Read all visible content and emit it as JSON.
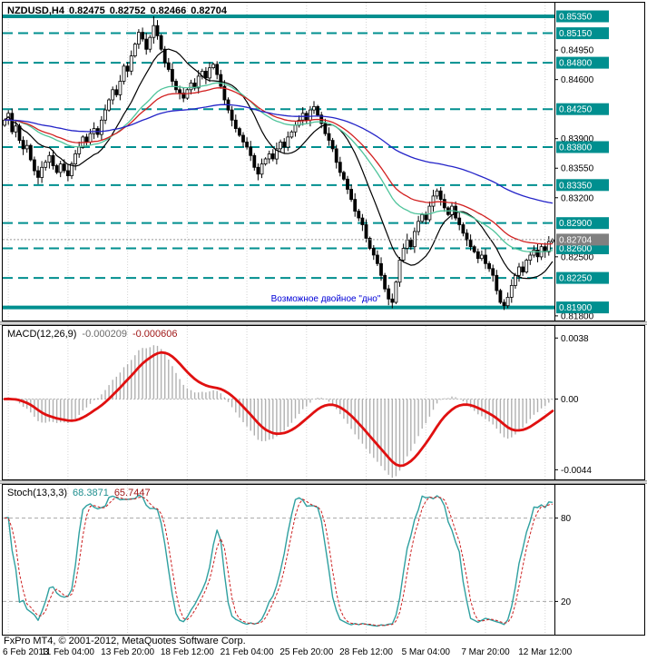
{
  "header": {
    "symbol": "NZDUSD,H4",
    "open": "0.82475",
    "high": "0.82752",
    "low": "0.82466",
    "close": "0.82704"
  },
  "macd_panel": {
    "label": "MACD(12,26,9)",
    "value_main": "-0.000209",
    "value_signal": "-0.000606"
  },
  "stoch_panel": {
    "label": "Stoch(13,3,3)",
    "value_main": "68.3871",
    "value_signal": "65.7447"
  },
  "footer": {
    "copyright": "FxPro MT4, © 2001-2012, MetaQuotes Software Corp."
  },
  "colors": {
    "level": "#008f8f",
    "grid": "#d4d4d4",
    "candle_up_fill": "#ffffff",
    "candle_down_fill": "#000000",
    "candle_border": "#000000",
    "macd_histogram": "#b0b0b0",
    "macd_signal": "#e01010",
    "stoch_main": "#2fa0a0",
    "stoch_signal": "#cc2020",
    "current_tag": "#808080",
    "tag_text": "#ffffff",
    "annotation": "#0000d8",
    "axis_text": "#000000"
  },
  "chart_data": {
    "type": "candlestick",
    "symbol": "NZDUSD",
    "timeframe": "H4",
    "current_bar": {
      "open": 0.82475,
      "high": 0.82752,
      "low": 0.82466,
      "close": 0.82704
    },
    "price_axis": {
      "min": 0.81745,
      "max": 0.85511,
      "current": 0.82704,
      "current_label": "0.82704",
      "plain_ticks": [
        {
          "value": 0.8495,
          "label": "0.84950"
        },
        {
          "value": 0.846,
          "label": "0.84600"
        },
        {
          "value": 0.839,
          "label": "0.83900"
        },
        {
          "value": 0.8355,
          "label": "0.83550"
        },
        {
          "value": 0.832,
          "label": "0.83200"
        },
        {
          "value": 0.825,
          "label": "0.82500"
        },
        {
          "value": 0.818,
          "label": "0.81800"
        }
      ]
    },
    "levels": [
      {
        "price": 0.8535,
        "label": "0.85350",
        "style": "solid"
      },
      {
        "price": 0.8515,
        "label": "0.85150",
        "style": "dashed"
      },
      {
        "price": 0.848,
        "label": "0.84800",
        "style": "dashed"
      },
      {
        "price": 0.8425,
        "label": "0.84250",
        "style": "dashed"
      },
      {
        "price": 0.838,
        "label": "0.83800",
        "style": "dashed"
      },
      {
        "price": 0.8335,
        "label": "0.83350",
        "style": "dashed"
      },
      {
        "price": 0.829,
        "label": "0.82900",
        "style": "dashed"
      },
      {
        "price": 0.826,
        "label": "0.82600",
        "style": "dashed"
      },
      {
        "price": 0.8225,
        "label": "0.82250",
        "style": "dashed"
      },
      {
        "price": 0.819,
        "label": "0.81900",
        "style": "solid"
      }
    ],
    "annotation": {
      "text": "Возможное двойное \"дно\"",
      "price": 0.8197,
      "x_frac": 0.585,
      "color": "#0000d8"
    },
    "time_axis": [
      {
        "index": 1,
        "label": "6 Feb 2013"
      },
      {
        "index": 17,
        "label": "11 Feb 04:00"
      },
      {
        "index": 33,
        "label": "13 Feb 20:00"
      },
      {
        "index": 49,
        "label": "18 Feb 12:00"
      },
      {
        "index": 65,
        "label": "21 Feb 04:00"
      },
      {
        "index": 81,
        "label": "25 Feb 20:00"
      },
      {
        "index": 97,
        "label": "28 Feb 12:00"
      },
      {
        "index": 113,
        "label": "5 Mar 04:00"
      },
      {
        "index": 129,
        "label": "7 Mar 20:00"
      },
      {
        "index": 145,
        "label": "12 Mar 12:00"
      }
    ],
    "first_open": 0.8406,
    "closes": [
      0.8412,
      0.842,
      0.8398,
      0.8405,
      0.8388,
      0.8378,
      0.8382,
      0.8365,
      0.8352,
      0.8344,
      0.8356,
      0.8362,
      0.837,
      0.8358,
      0.835,
      0.836,
      0.8352,
      0.8346,
      0.836,
      0.8372,
      0.838,
      0.8392,
      0.8386,
      0.8396,
      0.8402,
      0.8395,
      0.8412,
      0.8424,
      0.8436,
      0.8448,
      0.8442,
      0.8458,
      0.8476,
      0.847,
      0.8488,
      0.8502,
      0.8516,
      0.8508,
      0.8496,
      0.851,
      0.8524,
      0.8512,
      0.8496,
      0.848,
      0.8472,
      0.8458,
      0.8448,
      0.8444,
      0.8438,
      0.8448,
      0.8456,
      0.845,
      0.8464,
      0.847,
      0.8462,
      0.8474,
      0.8478,
      0.8466,
      0.8452,
      0.8436,
      0.8424,
      0.8412,
      0.8402,
      0.8394,
      0.8386,
      0.838,
      0.837,
      0.8356,
      0.8348,
      0.836,
      0.8366,
      0.8372,
      0.8366,
      0.8378,
      0.8386,
      0.838,
      0.8392,
      0.8398,
      0.8406,
      0.8412,
      0.842,
      0.8412,
      0.8424,
      0.8428,
      0.8418,
      0.8408,
      0.8396,
      0.8388,
      0.8378,
      0.8362,
      0.835,
      0.8342,
      0.833,
      0.8318,
      0.8304,
      0.8296,
      0.8288,
      0.8272,
      0.826,
      0.8252,
      0.8242,
      0.8228,
      0.8212,
      0.82,
      0.8196,
      0.822,
      0.8246,
      0.826,
      0.827,
      0.8262,
      0.828,
      0.8292,
      0.83,
      0.8294,
      0.831,
      0.8322,
      0.8328,
      0.8318,
      0.8308,
      0.83,
      0.831,
      0.8296,
      0.8288,
      0.8278,
      0.827,
      0.8262,
      0.8256,
      0.8248,
      0.8252,
      0.8242,
      0.8236,
      0.8228,
      0.821,
      0.8196,
      0.8192,
      0.8202,
      0.8216,
      0.8228,
      0.8238,
      0.8232,
      0.8246,
      0.8252,
      0.8258,
      0.825,
      0.8262,
      0.8256,
      0.8268,
      0.827
    ],
    "wick_overrides": {
      "9": {
        "low": 0.8336
      },
      "40": {
        "high": 0.8535
      },
      "104": {
        "low": 0.8189
      },
      "134": {
        "low": 0.8187
      }
    },
    "moving_averages": [
      {
        "name": "ma-black-13",
        "method": "sma",
        "period": 13,
        "color": "#000000",
        "width": 1.2
      },
      {
        "name": "ma-green-34",
        "method": "ema",
        "period": 34,
        "color": "#4fc49b",
        "width": 1.3
      },
      {
        "name": "ma-red-44",
        "method": "ema",
        "period": 44,
        "color": "#d22020",
        "width": 1.3
      },
      {
        "name": "ma-blue-110",
        "method": "ema",
        "period": 110,
        "color": "#2424c8",
        "width": 1.3
      }
    ],
    "macd": {
      "fast": 12,
      "slow": 26,
      "signal_period": 9,
      "range_min": -0.005,
      "range_max": 0.00455,
      "ticks": [
        {
          "value": 0.0038,
          "label": "0.0038"
        },
        {
          "value": 0.0,
          "label": "0.00"
        },
        {
          "value": -0.0044,
          "label": "-0.0044"
        }
      ]
    },
    "stoch": {
      "k_period": 13,
      "slowing": 3,
      "d_period": 3,
      "range_min": 0,
      "range_max": 100,
      "levels": [
        {
          "value": 80,
          "label": "80"
        },
        {
          "value": 20,
          "label": "20"
        }
      ]
    }
  }
}
